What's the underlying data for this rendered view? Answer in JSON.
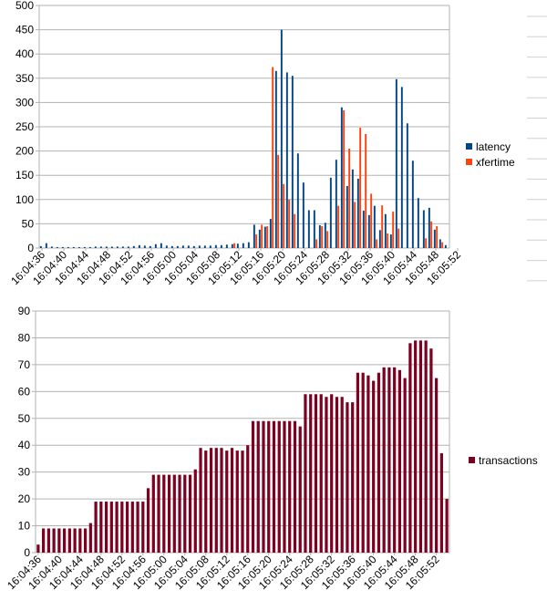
{
  "chart_data": [
    {
      "type": "bar",
      "ylim": [
        0,
        500
      ],
      "yticks": [
        0,
        50,
        100,
        150,
        200,
        250,
        300,
        350,
        400,
        450,
        500
      ],
      "grid": true,
      "legend_position": "right",
      "x_tick_labels": [
        "16:04:36",
        "16:04:40",
        "16:04:44",
        "16:04:48",
        "16:04:52",
        "16:04:56",
        "16:05:00",
        "16:05:04",
        "16:05:08",
        "16:05:12",
        "16:05:16",
        "16:05:20",
        "16:05:24",
        "16:05:28",
        "16:05:32",
        "16:05:36",
        "16:05:40",
        "16:05:44",
        "16:05:48",
        "16:05:52"
      ],
      "series": [
        {
          "name": "latency",
          "color": "#004586",
          "values": [
            4,
            10,
            3,
            2,
            2,
            2,
            2,
            2,
            2,
            2,
            3,
            3,
            3,
            3,
            3,
            3,
            3,
            4,
            6,
            5,
            4,
            8,
            10,
            5,
            4,
            4,
            5,
            5,
            4,
            5,
            5,
            5,
            6,
            6,
            7,
            8,
            9,
            10,
            12,
            48,
            38,
            44,
            60,
            365,
            450,
            362,
            355,
            195,
            135,
            78,
            78,
            47,
            52,
            145,
            182,
            290,
            128,
            162,
            143,
            77,
            68,
            87,
            37,
            70,
            28,
            348,
            332,
            257,
            180,
            103,
            78,
            83,
            38,
            18,
            6
          ]
        },
        {
          "name": "xfertime",
          "color": "#ff420e",
          "values": [
            0,
            0,
            0,
            0,
            0,
            0,
            0,
            0,
            0,
            0,
            0,
            0,
            0,
            0,
            0,
            0,
            0,
            0,
            0,
            0,
            0,
            0,
            0,
            0,
            0,
            0,
            0,
            0,
            0,
            0,
            0,
            0,
            0,
            0,
            0,
            10,
            0,
            0,
            0,
            28,
            48,
            45,
            373,
            192,
            132,
            100,
            70,
            0,
            0,
            0,
            18,
            45,
            35,
            0,
            87,
            284,
            205,
            95,
            248,
            235,
            112,
            18,
            88,
            30,
            75,
            40,
            0,
            0,
            0,
            0,
            20,
            55,
            45,
            12,
            0
          ]
        }
      ]
    },
    {
      "type": "bar",
      "ylim": [
        0,
        90
      ],
      "yticks": [
        0,
        10,
        20,
        30,
        40,
        50,
        60,
        70,
        80,
        90
      ],
      "grid": true,
      "legend_position": "right",
      "x_tick_labels": [
        "16:04:36",
        "16:04:40",
        "16:04:44",
        "16:04:48",
        "16:04:52",
        "16:04:56",
        "16:05:00",
        "16:05:04",
        "16:05:08",
        "16:05:12",
        "16:05:16",
        "16:05:20",
        "16:05:24",
        "16:05:28",
        "16:05:32",
        "16:05:36",
        "16:05:40",
        "16:05:44",
        "16:05:48",
        "16:05:52"
      ],
      "series": [
        {
          "name": "transactions",
          "color": "#7e0021",
          "values": [
            3,
            9,
            9,
            9,
            9,
            9,
            9,
            9,
            9,
            9,
            11,
            19,
            19,
            19,
            19,
            19,
            19,
            19,
            19,
            19,
            19,
            24,
            29,
            29,
            29,
            29,
            29,
            29,
            29,
            29,
            31,
            39,
            38,
            39,
            39,
            39,
            38,
            39,
            38,
            38,
            40,
            49,
            49,
            49,
            49,
            49,
            49,
            49,
            49,
            49,
            47,
            59,
            59,
            59,
            59,
            58,
            59,
            58,
            58,
            56,
            56,
            67,
            67,
            66,
            64,
            67,
            69,
            69,
            69,
            68,
            65,
            78,
            79,
            79,
            79,
            76,
            65,
            37,
            20
          ]
        }
      ]
    }
  ]
}
